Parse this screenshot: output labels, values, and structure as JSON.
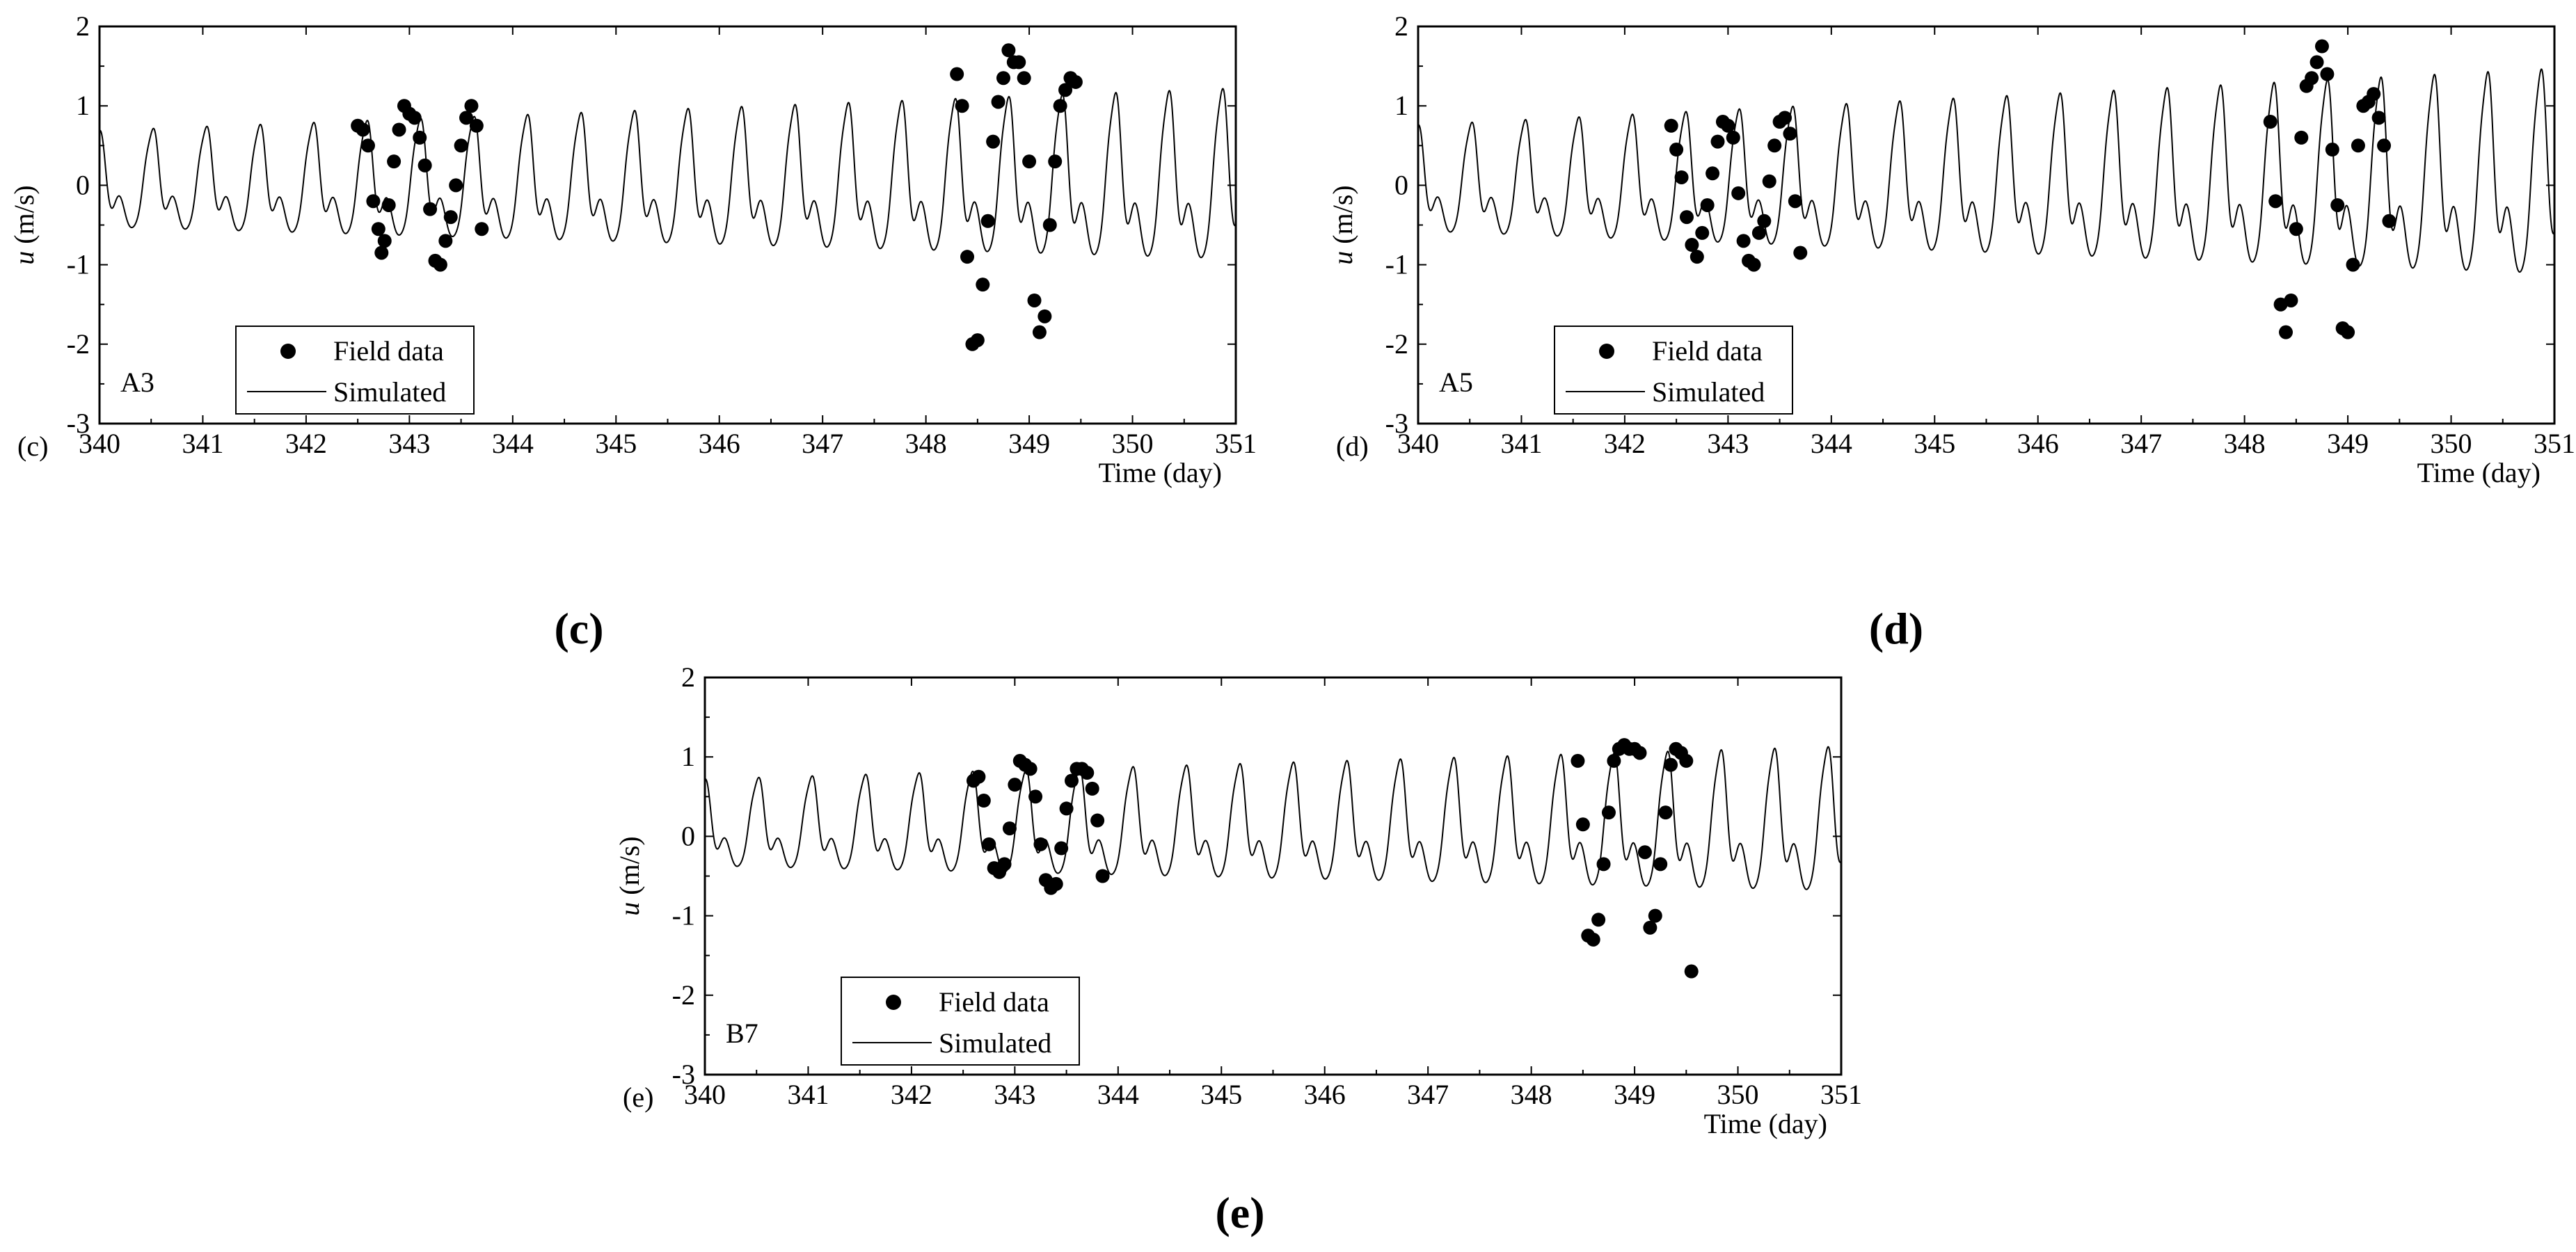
{
  "chart_data": [
    {
      "type": "line",
      "panel_letter": "(c)",
      "caption": "(c)",
      "station": "A3",
      "xlabel": "Time (day)",
      "ylabel_var": "u",
      "ylabel_unit": " (m/s)",
      "xlim": [
        340,
        351
      ],
      "ylim": [
        -3,
        2
      ],
      "xticks": [
        340,
        341,
        342,
        343,
        344,
        345,
        346,
        347,
        348,
        349,
        350,
        351
      ],
      "yticks": [
        -3,
        -2,
        -1,
        0,
        1,
        2
      ],
      "legend": {
        "field": "Field data",
        "sim": "Simulated",
        "position": "bottom-left"
      },
      "series": [
        {
          "name": "Field data",
          "kind": "scatter",
          "x": [
            342.5,
            342.55,
            342.6,
            342.65,
            342.7,
            342.73,
            342.76,
            342.8,
            342.85,
            342.9,
            342.95,
            343.0,
            343.05,
            343.1,
            343.15,
            343.2,
            343.25,
            343.3,
            343.35,
            343.4,
            343.45,
            343.5,
            343.55,
            343.6,
            343.65,
            343.7,
            348.3,
            348.35,
            348.4,
            348.45,
            348.5,
            348.55,
            348.6,
            348.65,
            348.7,
            348.75,
            348.8,
            348.85,
            348.9,
            348.95,
            349.0,
            349.05,
            349.1,
            349.15,
            349.2,
            349.25,
            349.3,
            349.35,
            349.4,
            349.45
          ],
          "y": [
            0.75,
            0.7,
            0.5,
            -0.2,
            -0.55,
            -0.85,
            -0.7,
            -0.25,
            0.3,
            0.7,
            1.0,
            0.9,
            0.85,
            0.6,
            0.25,
            -0.3,
            -0.95,
            -1.0,
            -0.7,
            -0.4,
            0.0,
            0.5,
            0.85,
            1.0,
            0.75,
            -0.55,
            1.4,
            1.0,
            -0.9,
            -2.0,
            -1.95,
            -1.25,
            -0.45,
            0.55,
            1.05,
            1.35,
            1.7,
            1.55,
            1.55,
            1.35,
            0.3,
            -1.45,
            -1.85,
            -1.65,
            -0.5,
            0.3,
            1.0,
            1.2,
            1.35,
            1.3
          ]
        },
        {
          "name": "Simulated",
          "kind": "line",
          "amp": 1.0,
          "slope": 0.07,
          "offset": 0.0
        }
      ]
    },
    {
      "type": "line",
      "panel_letter": "(d)",
      "caption": "(d)",
      "station": "A5",
      "xlabel": "Time (day)",
      "ylabel_var": "u",
      "ylabel_unit": " (m/s)",
      "xlim": [
        340,
        351
      ],
      "ylim": [
        -3,
        2
      ],
      "xticks": [
        340,
        341,
        342,
        343,
        344,
        345,
        346,
        347,
        348,
        349,
        350,
        351
      ],
      "yticks": [
        -3,
        -2,
        -1,
        0,
        1,
        2
      ],
      "legend": {
        "field": "Field data",
        "sim": "Simulated",
        "position": "bottom-left"
      },
      "series": [
        {
          "name": "Field data",
          "kind": "scatter",
          "x": [
            342.45,
            342.5,
            342.55,
            342.6,
            342.65,
            342.7,
            342.75,
            342.8,
            342.85,
            342.9,
            342.95,
            343.0,
            343.05,
            343.1,
            343.15,
            343.2,
            343.25,
            343.3,
            343.35,
            343.4,
            343.45,
            343.5,
            343.55,
            343.6,
            343.65,
            343.7,
            348.25,
            348.3,
            348.35,
            348.4,
            348.45,
            348.5,
            348.55,
            348.6,
            348.65,
            348.7,
            348.75,
            348.8,
            348.85,
            348.9,
            348.95,
            349.0,
            349.05,
            349.1,
            349.15,
            349.2,
            349.25,
            349.3,
            349.35,
            349.4
          ],
          "y": [
            0.75,
            0.45,
            0.1,
            -0.4,
            -0.75,
            -0.9,
            -0.6,
            -0.25,
            0.15,
            0.55,
            0.8,
            0.75,
            0.6,
            -0.1,
            -0.7,
            -0.95,
            -1.0,
            -0.6,
            -0.45,
            0.05,
            0.5,
            0.8,
            0.85,
            0.65,
            -0.2,
            -0.85,
            0.8,
            -0.2,
            -1.5,
            -1.85,
            -1.45,
            -0.55,
            0.6,
            1.25,
            1.35,
            1.55,
            1.75,
            1.4,
            0.45,
            -0.25,
            -1.8,
            -1.85,
            -1.0,
            0.5,
            1.0,
            1.05,
            1.15,
            0.85,
            0.5,
            -0.45
          ]
        },
        {
          "name": "Simulated",
          "kind": "line",
          "amp": 1.1,
          "slope": 0.085,
          "offset": 0.0
        }
      ]
    },
    {
      "type": "line",
      "panel_letter": "(e)",
      "caption": "(e)",
      "station": "B7",
      "xlabel": "Time (day)",
      "ylabel_var": "u",
      "ylabel_unit": " (m/s)",
      "xlim": [
        340,
        351
      ],
      "ylim": [
        -3,
        2
      ],
      "xticks": [
        340,
        341,
        342,
        343,
        344,
        345,
        346,
        347,
        348,
        349,
        350,
        351
      ],
      "yticks": [
        -3,
        -2,
        -1,
        0,
        1,
        2
      ],
      "legend": {
        "field": "Field data",
        "sim": "Simulated",
        "position": "bottom-left"
      },
      "series": [
        {
          "name": "Field data",
          "kind": "scatter",
          "x": [
            342.6,
            342.65,
            342.7,
            342.75,
            342.8,
            342.85,
            342.9,
            342.95,
            343.0,
            343.05,
            343.1,
            343.15,
            343.2,
            343.25,
            343.3,
            343.35,
            343.4,
            343.45,
            343.5,
            343.55,
            343.6,
            343.65,
            343.7,
            343.75,
            343.8,
            343.85,
            348.45,
            348.5,
            348.55,
            348.6,
            348.65,
            348.7,
            348.75,
            348.8,
            348.85,
            348.9,
            348.95,
            349.0,
            349.05,
            349.1,
            349.15,
            349.2,
            349.25,
            349.3,
            349.35,
            349.4,
            349.45,
            349.5,
            349.55
          ],
          "y": [
            0.7,
            0.75,
            0.45,
            -0.1,
            -0.4,
            -0.45,
            -0.35,
            0.1,
            0.65,
            0.95,
            0.9,
            0.85,
            0.5,
            -0.1,
            -0.55,
            -0.65,
            -0.6,
            -0.15,
            0.35,
            0.7,
            0.85,
            0.85,
            0.8,
            0.6,
            0.2,
            -0.5,
            0.95,
            0.15,
            -1.25,
            -1.3,
            -1.05,
            -0.35,
            0.3,
            0.95,
            1.1,
            1.15,
            1.1,
            1.1,
            1.05,
            -0.2,
            -1.15,
            -1.0,
            -0.35,
            0.3,
            0.9,
            1.1,
            1.05,
            0.95,
            -1.7
          ]
        },
        {
          "name": "Simulated",
          "kind": "line",
          "amp": 0.9,
          "slope": 0.06,
          "offset": 0.1
        }
      ]
    }
  ]
}
